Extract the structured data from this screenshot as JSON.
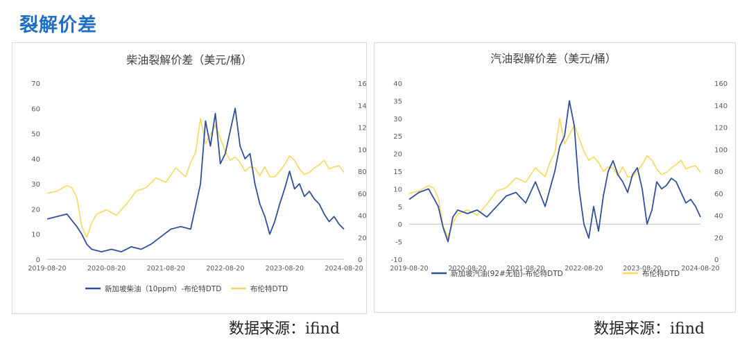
{
  "page": {
    "title": "裂解价差"
  },
  "source_left": "数据来源：ifind",
  "source_right": "数据来源：ifind",
  "colors": {
    "title_blue": "#1f6fc5",
    "series_blue": "#2f4f9a",
    "series_yellow": "#f7d85e"
  },
  "chart_data": [
    {
      "type": "line",
      "title": "柴油裂解价差（美元/桶）",
      "x_ticks": [
        "2019-08-20",
        "2020-08-20",
        "2021-08-20",
        "2022-08-20",
        "2023-08-20",
        "2024-08-20"
      ],
      "y_left": {
        "min": 0,
        "max": 70,
        "ticks": [
          "0",
          "10",
          "20",
          "30",
          "40",
          "50",
          "60",
          "70"
        ]
      },
      "y_right": {
        "min": 0,
        "max": 160,
        "ticks": [
          "0",
          "20",
          "40",
          "60",
          "80",
          "100",
          "120",
          "140",
          "160"
        ]
      },
      "grid": false,
      "legend_position": "bottom",
      "series": [
        {
          "name": "新加坡柴油（10ppm）-布伦特DTD",
          "axis": "left",
          "color": "#2f4f9a",
          "points": [
            [
              "2019-08",
              16
            ],
            [
              "2019-10",
              17
            ],
            [
              "2019-12",
              18
            ],
            [
              "2020-02",
              13
            ],
            [
              "2020-03",
              10
            ],
            [
              "2020-04",
              6
            ],
            [
              "2020-05",
              4
            ],
            [
              "2020-07",
              3
            ],
            [
              "2020-09",
              4
            ],
            [
              "2020-11",
              3
            ],
            [
              "2021-01",
              5
            ],
            [
              "2021-03",
              4
            ],
            [
              "2021-05",
              6
            ],
            [
              "2021-07",
              9
            ],
            [
              "2021-09",
              12
            ],
            [
              "2021-11",
              13
            ],
            [
              "2022-01",
              12
            ],
            [
              "2022-03",
              30
            ],
            [
              "2022-04",
              55
            ],
            [
              "2022-05",
              45
            ],
            [
              "2022-06",
              58
            ],
            [
              "2022-07",
              38
            ],
            [
              "2022-08",
              42
            ],
            [
              "2022-10",
              60
            ],
            [
              "2022-11",
              45
            ],
            [
              "2022-12",
              40
            ],
            [
              "2023-01",
              42
            ],
            [
              "2023-02",
              30
            ],
            [
              "2023-03",
              22
            ],
            [
              "2023-04",
              17
            ],
            [
              "2023-05",
              10
            ],
            [
              "2023-06",
              15
            ],
            [
              "2023-07",
              22
            ],
            [
              "2023-08",
              28
            ],
            [
              "2023-09",
              35
            ],
            [
              "2023-10",
              28
            ],
            [
              "2023-11",
              30
            ],
            [
              "2023-12",
              25
            ],
            [
              "2024-01",
              27
            ],
            [
              "2024-02",
              24
            ],
            [
              "2024-03",
              22
            ],
            [
              "2024-04",
              18
            ],
            [
              "2024-05",
              15
            ],
            [
              "2024-06",
              17
            ],
            [
              "2024-07",
              14
            ],
            [
              "2024-08",
              12
            ]
          ]
        },
        {
          "name": "布伦特DTD",
          "axis": "right",
          "color": "#f7d85e",
          "points": [
            [
              "2019-08",
              60
            ],
            [
              "2019-10",
              62
            ],
            [
              "2019-12",
              67
            ],
            [
              "2020-01",
              65
            ],
            [
              "2020-02",
              56
            ],
            [
              "2020-03",
              30
            ],
            [
              "2020-04",
              20
            ],
            [
              "2020-05",
              33
            ],
            [
              "2020-06",
              41
            ],
            [
              "2020-08",
              45
            ],
            [
              "2020-10",
              40
            ],
            [
              "2020-12",
              50
            ],
            [
              "2021-02",
              62
            ],
            [
              "2021-04",
              65
            ],
            [
              "2021-06",
              74
            ],
            [
              "2021-08",
              70
            ],
            [
              "2021-10",
              83
            ],
            [
              "2021-12",
              75
            ],
            [
              "2022-01",
              88
            ],
            [
              "2022-02",
              97
            ],
            [
              "2022-03",
              128
            ],
            [
              "2022-04",
              105
            ],
            [
              "2022-05",
              113
            ],
            [
              "2022-06",
              122
            ],
            [
              "2022-07",
              110
            ],
            [
              "2022-08",
              98
            ],
            [
              "2022-09",
              90
            ],
            [
              "2022-10",
              93
            ],
            [
              "2022-11",
              88
            ],
            [
              "2022-12",
              80
            ],
            [
              "2023-01",
              84
            ],
            [
              "2023-02",
              83
            ],
            [
              "2023-03",
              76
            ],
            [
              "2023-04",
              84
            ],
            [
              "2023-05",
              75
            ],
            [
              "2023-06",
              75
            ],
            [
              "2023-07",
              80
            ],
            [
              "2023-08",
              86
            ],
            [
              "2023-09",
              94
            ],
            [
              "2023-10",
              90
            ],
            [
              "2023-11",
              82
            ],
            [
              "2023-12",
              77
            ],
            [
              "2024-01",
              79
            ],
            [
              "2024-02",
              83
            ],
            [
              "2024-03",
              86
            ],
            [
              "2024-04",
              90
            ],
            [
              "2024-05",
              82
            ],
            [
              "2024-06",
              84
            ],
            [
              "2024-07",
              85
            ],
            [
              "2024-08",
              79
            ]
          ]
        }
      ]
    },
    {
      "type": "line",
      "title": "汽油裂解价差（美元/桶）",
      "x_ticks": [
        "2019-08-20",
        "2020-08-20",
        "2021-08-20",
        "2022-08-20",
        "2023-08-20",
        "2024-08-20"
      ],
      "y_left": {
        "min": -10,
        "max": 40,
        "ticks": [
          "-10",
          "-5",
          "0",
          "5",
          "10",
          "15",
          "20",
          "25",
          "30",
          "35",
          "40"
        ]
      },
      "y_right": {
        "min": 0,
        "max": 160,
        "ticks": [
          "0",
          "20",
          "40",
          "60",
          "80",
          "100",
          "120",
          "140",
          "160"
        ]
      },
      "grid": false,
      "legend_position": "bottom",
      "series": [
        {
          "name": "新加坡汽油(92#无铅)-布伦特DTD",
          "axis": "left",
          "color": "#2f4f9a",
          "points": [
            [
              "2019-08",
              7
            ],
            [
              "2019-10",
              9
            ],
            [
              "2019-12",
              10
            ],
            [
              "2020-02",
              5
            ],
            [
              "2020-03",
              -1
            ],
            [
              "2020-04",
              -5
            ],
            [
              "2020-05",
              2
            ],
            [
              "2020-06",
              4
            ],
            [
              "2020-08",
              3
            ],
            [
              "2020-10",
              4
            ],
            [
              "2020-12",
              2
            ],
            [
              "2021-02",
              5
            ],
            [
              "2021-04",
              8
            ],
            [
              "2021-06",
              9
            ],
            [
              "2021-08",
              6
            ],
            [
              "2021-10",
              12
            ],
            [
              "2021-12",
              5
            ],
            [
              "2022-01",
              10
            ],
            [
              "2022-02",
              15
            ],
            [
              "2022-03",
              22
            ],
            [
              "2022-04",
              25
            ],
            [
              "2022-05",
              35
            ],
            [
              "2022-06",
              28
            ],
            [
              "2022-07",
              10
            ],
            [
              "2022-08",
              0
            ],
            [
              "2022-09",
              -4
            ],
            [
              "2022-10",
              5
            ],
            [
              "2022-11",
              -2
            ],
            [
              "2022-12",
              8
            ],
            [
              "2023-01",
              15
            ],
            [
              "2023-02",
              18
            ],
            [
              "2023-03",
              14
            ],
            [
              "2023-04",
              12
            ],
            [
              "2023-05",
              9
            ],
            [
              "2023-06",
              14
            ],
            [
              "2023-07",
              16
            ],
            [
              "2023-08",
              10
            ],
            [
              "2023-09",
              0
            ],
            [
              "2023-10",
              4
            ],
            [
              "2023-11",
              12
            ],
            [
              "2023-12",
              10
            ],
            [
              "2024-01",
              11
            ],
            [
              "2024-02",
              13
            ],
            [
              "2024-03",
              12
            ],
            [
              "2024-04",
              9
            ],
            [
              "2024-05",
              6
            ],
            [
              "2024-06",
              7
            ],
            [
              "2024-07",
              5
            ],
            [
              "2024-08",
              2
            ]
          ]
        },
        {
          "name": "布伦特DTD",
          "axis": "right",
          "color": "#f7d85e",
          "points": [
            [
              "2019-08",
              60
            ],
            [
              "2019-10",
              62
            ],
            [
              "2019-12",
              67
            ],
            [
              "2020-01",
              65
            ],
            [
              "2020-02",
              56
            ],
            [
              "2020-03",
              30
            ],
            [
              "2020-04",
              20
            ],
            [
              "2020-05",
              33
            ],
            [
              "2020-06",
              41
            ],
            [
              "2020-08",
              45
            ],
            [
              "2020-10",
              40
            ],
            [
              "2020-12",
              50
            ],
            [
              "2021-02",
              62
            ],
            [
              "2021-04",
              65
            ],
            [
              "2021-06",
              74
            ],
            [
              "2021-08",
              70
            ],
            [
              "2021-10",
              83
            ],
            [
              "2021-12",
              75
            ],
            [
              "2022-01",
              88
            ],
            [
              "2022-02",
              97
            ],
            [
              "2022-03",
              128
            ],
            [
              "2022-04",
              105
            ],
            [
              "2022-05",
              113
            ],
            [
              "2022-06",
              122
            ],
            [
              "2022-07",
              110
            ],
            [
              "2022-08",
              98
            ],
            [
              "2022-09",
              90
            ],
            [
              "2022-10",
              93
            ],
            [
              "2022-11",
              88
            ],
            [
              "2022-12",
              80
            ],
            [
              "2023-01",
              84
            ],
            [
              "2023-02",
              83
            ],
            [
              "2023-03",
              76
            ],
            [
              "2023-04",
              84
            ],
            [
              "2023-05",
              75
            ],
            [
              "2023-06",
              75
            ],
            [
              "2023-07",
              80
            ],
            [
              "2023-08",
              86
            ],
            [
              "2023-09",
              94
            ],
            [
              "2023-10",
              90
            ],
            [
              "2023-11",
              82
            ],
            [
              "2023-12",
              77
            ],
            [
              "2024-01",
              79
            ],
            [
              "2024-02",
              83
            ],
            [
              "2024-03",
              86
            ],
            [
              "2024-04",
              90
            ],
            [
              "2024-05",
              82
            ],
            [
              "2024-06",
              84
            ],
            [
              "2024-07",
              85
            ],
            [
              "2024-08",
              79
            ]
          ]
        }
      ]
    }
  ]
}
